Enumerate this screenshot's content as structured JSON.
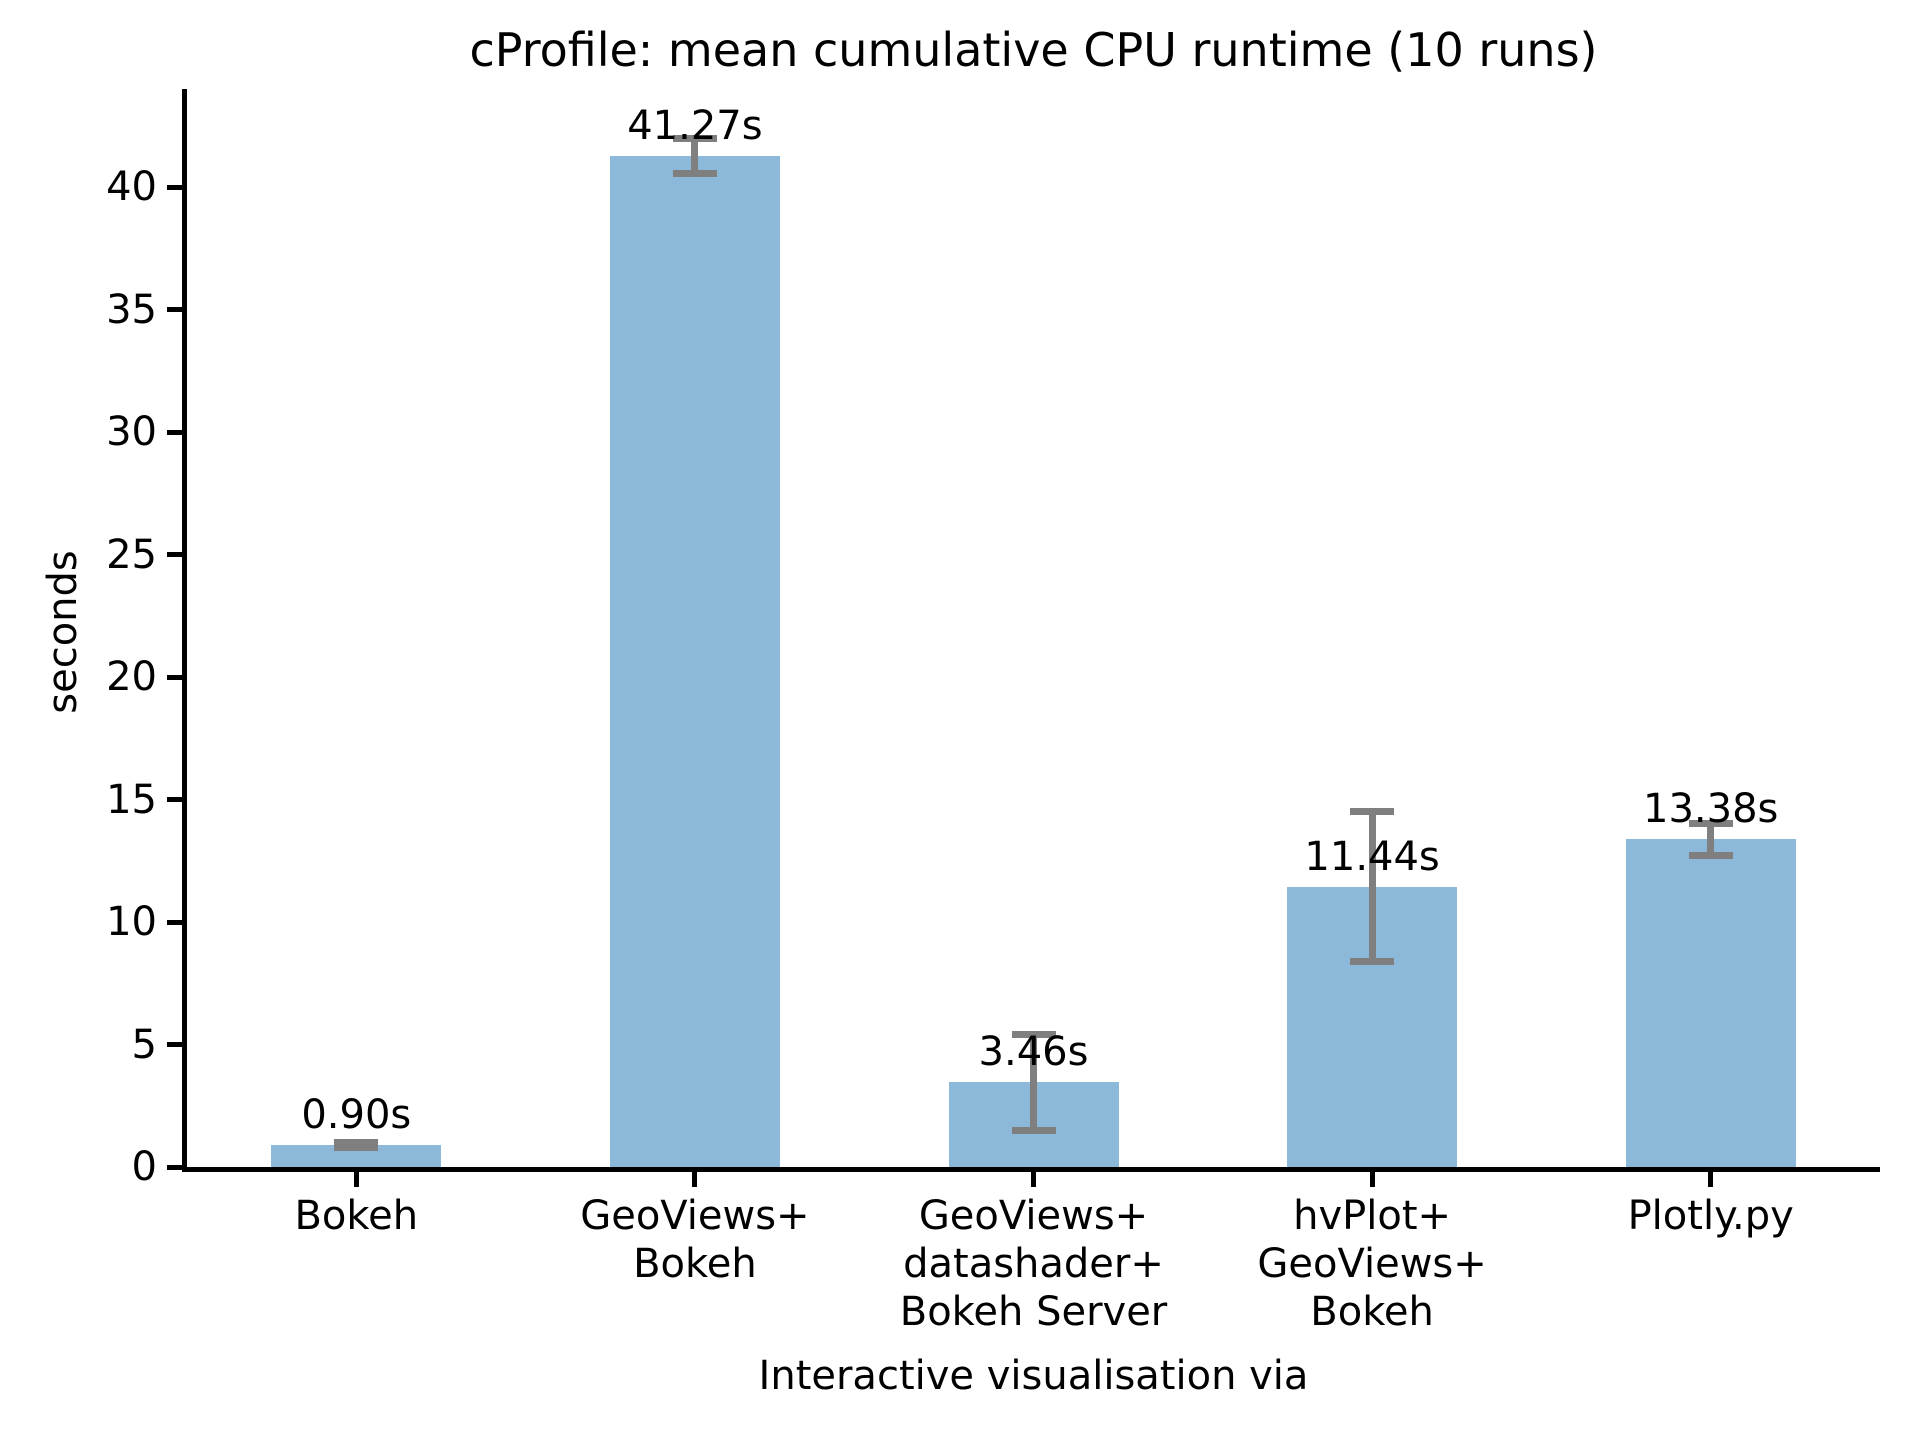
{
  "chart_data": {
    "type": "bar",
    "title": "cProfile: mean cumulative CPU runtime (10 runs)",
    "xlabel": "Interactive visualisation via",
    "ylabel": "seconds",
    "categories": [
      [
        "Bokeh"
      ],
      [
        "GeoViews+",
        "Bokeh"
      ],
      [
        "GeoViews+",
        "datashader+",
        "Bokeh Server"
      ],
      [
        "hvPlot+",
        "GeoViews+",
        "Bokeh"
      ],
      [
        "Plotly.py"
      ]
    ],
    "values": [
      0.9,
      41.27,
      3.46,
      11.44,
      13.38
    ],
    "value_labels": [
      "0.90s",
      "41.27s",
      "3.46s",
      "11.44s",
      "13.38s"
    ],
    "errors": [
      0.1,
      0.7,
      1.95,
      3.05,
      0.65
    ],
    "yticks": [
      0,
      5,
      10,
      15,
      20,
      25,
      30,
      35,
      40
    ],
    "ytick_labels": [
      "0",
      "5",
      "10",
      "15",
      "20",
      "25",
      "30",
      "35",
      "40"
    ],
    "ylim": [
      0,
      44
    ],
    "grid": false,
    "legend_position": "none",
    "bar_color": "#8cb8d9",
    "error_color": "#7f7f7f",
    "text_color": "#000000",
    "axis_color": "#000000"
  }
}
